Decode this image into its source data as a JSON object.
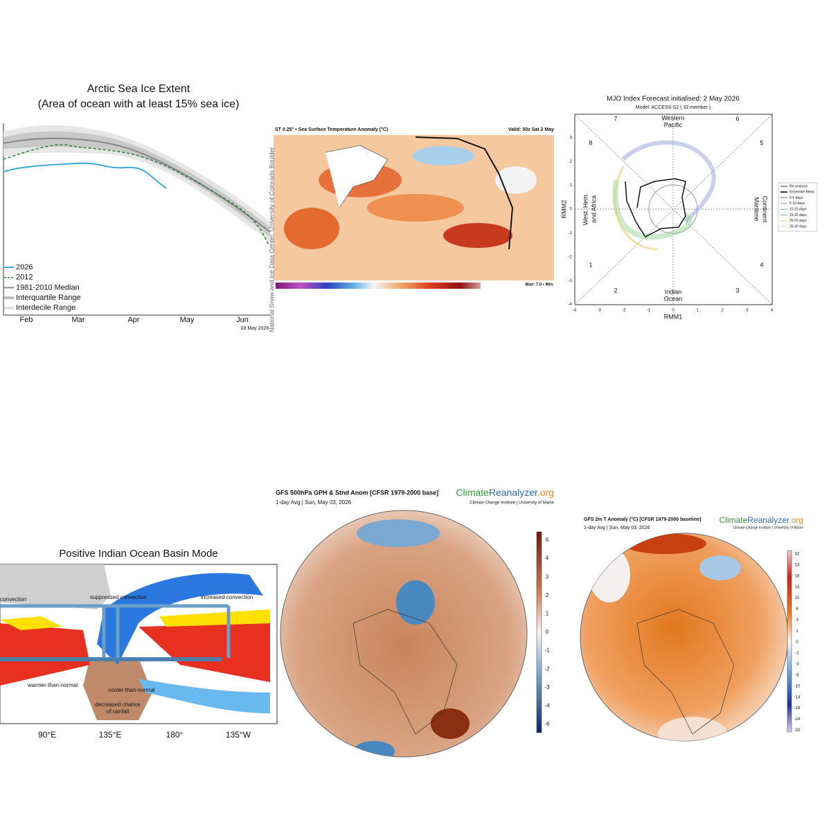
{
  "sea_ice": {
    "title": "Arctic Sea Ice Extent",
    "subtitle": "(Area of ocean with at least 15% sea ice)",
    "legend": [
      "2026",
      "2012",
      "1981-2010 Median",
      "Interquartile Range",
      "Interdecile Range"
    ],
    "months": [
      "Feb",
      "Mar",
      "Apr",
      "May",
      "Jun"
    ],
    "date": "03 May 2026",
    "credit": "National Snow and Ice Data Center, University of Colorado Boulder"
  },
  "sst": {
    "title": "ST 0.25° • Sea Surface Temperature Anomaly (°C)",
    "valid": "Valid: 00z Sat 2 May",
    "stats": "Max: 7.0 • Min:"
  },
  "mjo": {
    "title": "MJO Index Forecast initialised:  2  May 2026",
    "model": "Model: ACCESS-S2 ( 33 member )",
    "phases": [
      "1",
      "2",
      "3",
      "4",
      "5",
      "6",
      "7",
      "8"
    ],
    "regions": {
      "top": [
        "Western",
        "Pacific"
      ],
      "left": [
        "West. Hem.",
        "and Africa"
      ],
      "bottom": [
        "Indian",
        "Ocean"
      ],
      "right": [
        "Maritime",
        "Continent"
      ]
    },
    "x_label": "RMM1",
    "y_label": "RMM2",
    "ticks": [
      "-4",
      "-3",
      "-2",
      "-1",
      "0",
      "1",
      "2",
      "3",
      "4"
    ],
    "legend": [
      "Re-analysis",
      "Ensemble Mean",
      "0-5 days",
      "5-10 days",
      "10-15 days",
      "15-20 days",
      "20-25 days",
      "25-30 days"
    ]
  },
  "iobm": {
    "title": "Positive Indian Ocean Basin Mode",
    "labels": [
      "convection",
      "suppressed convection",
      "increased convection",
      "warmer-than-normal",
      "cooler-than-normal",
      "decreased chance",
      "of rainfall"
    ],
    "longitudes": [
      "90°E",
      "135°E",
      "180°",
      "135°W"
    ]
  },
  "gph": {
    "title": "GFS 500hPa GPH & Stnd Anom [CFSR 1979-2000 base]",
    "subtitle": "1-day Avg | Sun, May 03, 2026",
    "logo": [
      "Climate",
      "Reanalyzer",
      ".org"
    ],
    "institute": "Climate Change Institute | University of Maine",
    "colorbar": [
      "6",
      "4",
      "3",
      "2",
      "1",
      "0",
      "-1",
      "-2",
      "-3",
      "-4",
      "-6"
    ]
  },
  "t2m": {
    "title": "GFS 2m T Anomaly (°C) [CFSR 1979-2000 baseline]",
    "subtitle": "1-day Avg | Sun, May 03, 2026",
    "logo": [
      "Climate",
      "Reanalyzer",
      ".org"
    ],
    "institute": "Climate Change Institute | University of Maine",
    "colorbar": [
      "32",
      "24",
      "18",
      "14",
      "10",
      "6",
      "3",
      "1",
      "0",
      "-1",
      "-3",
      "-6",
      "-10",
      "-14",
      "-18",
      "-24",
      "-32"
    ]
  }
}
